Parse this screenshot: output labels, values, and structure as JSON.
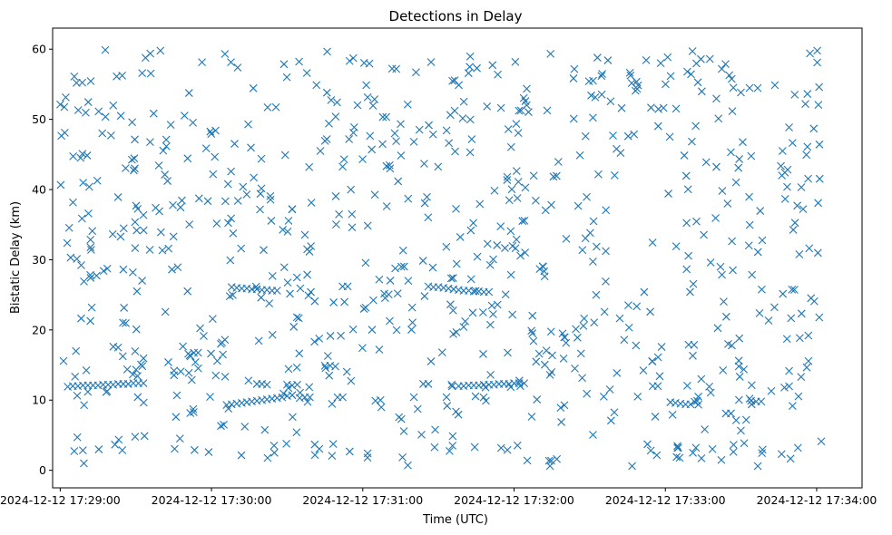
{
  "chart_data": {
    "type": "scatter",
    "title": "Detections in Delay",
    "xlabel": "Time (UTC)",
    "ylabel": "Bistatic Delay (km)",
    "x_tick_labels": [
      "2024-12-12 17:29:00",
      "2024-12-12 17:30:00",
      "2024-12-12 17:31:00",
      "2024-12-12 17:32:00",
      "2024-12-12 17:33:00",
      "2024-12-12 17:34:00"
    ],
    "y_ticks": [
      0,
      10,
      20,
      30,
      40,
      50,
      60
    ],
    "xlim": [
      "2024-12-12 17:28:57",
      "2024-12-12 17:34:18"
    ],
    "ylim": [
      -2.5,
      63
    ],
    "marker": "x",
    "color": "#1f77b4",
    "grid": false,
    "track_points": [
      [
        "17:29:03",
        11.9
      ],
      [
        "17:29:05",
        12.0
      ],
      [
        "17:29:07",
        12.0
      ],
      [
        "17:29:09",
        12.1
      ],
      [
        "17:29:11",
        12.1
      ],
      [
        "17:29:13",
        12.1
      ],
      [
        "17:29:15",
        12.1
      ],
      [
        "17:29:17",
        12.2
      ],
      [
        "17:29:19",
        12.2
      ],
      [
        "17:29:21",
        12.2
      ],
      [
        "17:29:23",
        12.3
      ],
      [
        "17:29:25",
        12.3
      ],
      [
        "17:29:27",
        12.3
      ],
      [
        "17:29:29",
        12.4
      ],
      [
        "17:29:31",
        12.4
      ],
      [
        "17:29:33",
        12.4
      ],
      [
        "17:30:06",
        9.3
      ],
      [
        "17:30:08",
        9.4
      ],
      [
        "17:30:10",
        9.5
      ],
      [
        "17:30:12",
        9.6
      ],
      [
        "17:30:14",
        9.7
      ],
      [
        "17:30:16",
        9.8
      ],
      [
        "17:30:18",
        9.9
      ],
      [
        "17:30:20",
        10.0
      ],
      [
        "17:30:22",
        10.1
      ],
      [
        "17:30:24",
        10.2
      ],
      [
        "17:30:26",
        10.3
      ],
      [
        "17:30:28",
        10.4
      ],
      [
        "17:30:30",
        10.6
      ],
      [
        "17:30:32",
        10.7
      ],
      [
        "17:30:08",
        26.1
      ],
      [
        "17:30:10",
        26.0
      ],
      [
        "17:30:12",
        25.9
      ],
      [
        "17:30:14",
        25.9
      ],
      [
        "17:30:16",
        25.8
      ],
      [
        "17:30:18",
        25.8
      ],
      [
        "17:30:20",
        25.7
      ],
      [
        "17:30:22",
        25.7
      ],
      [
        "17:30:24",
        25.6
      ],
      [
        "17:30:26",
        25.6
      ],
      [
        "17:30:18",
        12.3
      ],
      [
        "17:30:20",
        12.3
      ],
      [
        "17:30:22",
        12.2
      ],
      [
        "17:30:30",
        12.2
      ],
      [
        "17:30:32",
        12.1
      ],
      [
        "17:30:34",
        12.2
      ],
      [
        "17:30:52",
        26.2
      ],
      [
        "17:30:54",
        26.2
      ],
      [
        "17:31:26",
        26.2
      ],
      [
        "17:31:28",
        26.1
      ],
      [
        "17:31:30",
        26.1
      ],
      [
        "17:31:32",
        26.0
      ],
      [
        "17:31:34",
        25.9
      ],
      [
        "17:31:36",
        25.8
      ],
      [
        "17:31:38",
        25.7
      ],
      [
        "17:31:40",
        25.6
      ],
      [
        "17:31:42",
        25.6
      ],
      [
        "17:31:44",
        25.5
      ],
      [
        "17:31:46",
        25.5
      ],
      [
        "17:31:48",
        25.4
      ],
      [
        "17:31:50",
        25.4
      ],
      [
        "17:31:24",
        12.3
      ],
      [
        "17:31:26",
        12.3
      ],
      [
        "17:31:38",
        12.0
      ],
      [
        "17:31:40",
        12.0
      ],
      [
        "17:31:42",
        12.1
      ],
      [
        "17:31:44",
        12.1
      ],
      [
        "17:31:46",
        12.1
      ],
      [
        "17:31:48",
        12.2
      ],
      [
        "17:31:50",
        12.2
      ],
      [
        "17:31:52",
        12.2
      ],
      [
        "17:31:54",
        12.3
      ],
      [
        "17:31:56",
        12.3
      ],
      [
        "17:31:58",
        12.3
      ],
      [
        "17:32:00",
        12.4
      ],
      [
        "17:32:02",
        12.4
      ],
      [
        "17:32:04",
        12.4
      ],
      [
        "17:30:35",
        10.3
      ],
      [
        "17:30:37",
        10.4
      ],
      [
        "17:30:39",
        10.4
      ],
      [
        "17:30:50",
        10.4
      ],
      [
        "17:30:52",
        10.4
      ],
      [
        "17:31:05",
        9.9
      ],
      [
        "17:31:07",
        10.0
      ],
      [
        "17:32:55",
        12.0
      ],
      [
        "17:32:57",
        12.0
      ],
      [
        "17:33:02",
        9.7
      ],
      [
        "17:33:04",
        9.6
      ],
      [
        "17:33:06",
        9.5
      ],
      [
        "17:33:08",
        9.4
      ],
      [
        "17:33:10",
        9.4
      ],
      [
        "17:33:24",
        8.1
      ],
      [
        "17:33:26",
        8.1
      ],
      [
        "17:33:34",
        9.9
      ],
      [
        "17:33:36",
        9.8
      ],
      [
        "17:33:38",
        9.8
      ]
    ],
    "noise": {
      "point_count": 800,
      "x_range": [
        "17:29:00",
        "17:34:02"
      ],
      "y_range": [
        0.5,
        60
      ],
      "note": "The other detections are spread randomly over the whole plot area."
    }
  }
}
